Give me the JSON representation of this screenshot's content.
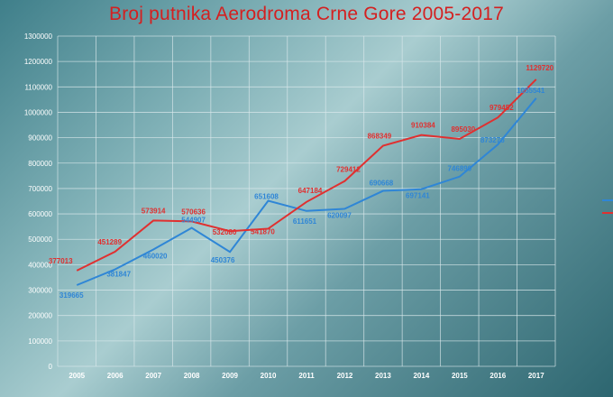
{
  "colors": {
    "series1": "#2f86d6",
    "series2": "#e03030",
    "grid": "#dbe9ec"
  },
  "chart_data": {
    "type": "line",
    "title": "Broj putnika Aerodroma Crne Gore 2005-2017",
    "categories": [
      "2005",
      "2006",
      "2007",
      "2008",
      "2009",
      "2010",
      "2011",
      "2012",
      "2013",
      "2014",
      "2015",
      "2016",
      "2017"
    ],
    "y_ticks": [
      "0",
      "100000",
      "200000",
      "300000",
      "400000",
      "500000",
      "600000",
      "700000",
      "800000",
      "900000",
      "1000000",
      "1100000",
      "1200000",
      "1300000"
    ],
    "ylim": [
      0,
      1300000
    ],
    "grid": true,
    "legend": "right",
    "series": [
      {
        "values": [
          319665,
          381847,
          460020,
          544907,
          450376,
          651608,
          611651,
          620097,
          690668,
          697141,
          746899,
          873276,
          1055541
        ],
        "labels": [
          "319665",
          "381847",
          "460020",
          "544907",
          "450376",
          "651608",
          "611651",
          "620097",
          "690668",
          "697141",
          "746899",
          "873276",
          "1055541"
        ]
      },
      {
        "values": [
          377013,
          451289,
          573914,
          570636,
          532080,
          541870,
          647184,
          729412,
          868349,
          910384,
          895030,
          979452,
          1129720
        ],
        "labels": [
          "377013",
          "451289",
          "573914",
          "570636",
          "532080",
          "541870",
          "647184",
          "729412",
          "868349",
          "910384",
          "895030",
          "979452",
          "1129720"
        ]
      }
    ]
  }
}
